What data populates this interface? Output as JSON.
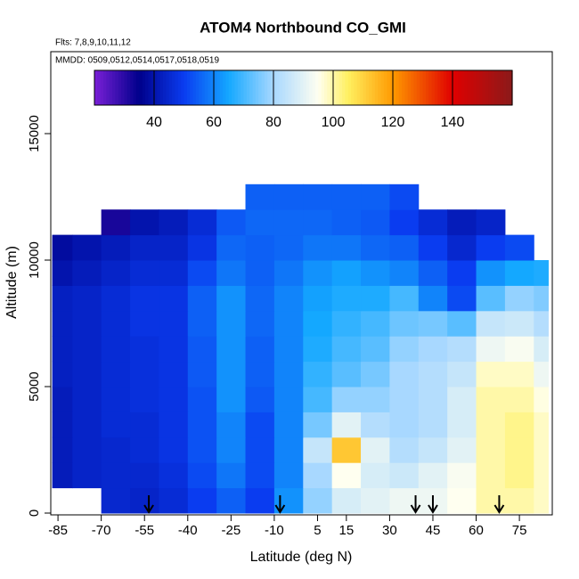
{
  "chart_data": {
    "type": "heatmap",
    "title": "ATOM4 Northbound CO_GMI",
    "subtitle": "Flts: 7,8,9,10,11,12",
    "annotation": "MMDD: 0509,0512,0514,0517,0518,0519",
    "xlabel": "Latitude (deg N)",
    "ylabel": "Altitude (m)",
    "xlim": [
      -87.5,
      86.4
    ],
    "ylim": [
      0,
      18240
    ],
    "xticks": [
      -85,
      -70,
      -55,
      -40,
      -25,
      -10,
      5,
      15,
      30,
      45,
      60,
      75
    ],
    "yticks": [
      0,
      5000,
      10000,
      15000
    ],
    "x_edges": [
      -87,
      -80,
      -70,
      -60,
      -50,
      -40,
      -30,
      -20,
      -10,
      0,
      10,
      20,
      30,
      40,
      50,
      60,
      70,
      80,
      85
    ],
    "y_edges": [
      0,
      1000,
      2000,
      3000,
      4000,
      5000,
      6000,
      7000,
      8000,
      9000,
      10000,
      11000,
      12000,
      13000
    ],
    "z": [
      [
        null,
        null,
        45,
        44,
        46,
        50,
        55,
        50,
        62,
        78,
        88,
        90,
        92,
        92,
        95,
        100,
        100,
        98
      ],
      [
        42,
        44,
        45,
        45,
        47,
        52,
        58,
        52,
        60,
        80,
        95,
        88,
        86,
        90,
        94,
        100,
        102,
        98
      ],
      [
        42,
        44,
        45,
        46,
        48,
        53,
        60,
        52,
        60,
        85,
        112,
        90,
        82,
        85,
        90,
        100,
        102,
        98
      ],
      [
        42,
        44,
        46,
        46,
        48,
        53,
        60,
        52,
        60,
        75,
        90,
        82,
        80,
        82,
        88,
        100,
        102,
        98
      ],
      [
        42,
        44,
        46,
        47,
        48,
        53,
        62,
        54,
        60,
        70,
        78,
        78,
        80,
        82,
        88,
        100,
        100,
        96
      ],
      [
        43,
        44,
        46,
        47,
        48,
        54,
        62,
        55,
        60,
        68,
        72,
        75,
        80,
        82,
        85,
        98,
        98,
        92
      ],
      [
        43,
        44,
        46,
        47,
        48,
        54,
        62,
        55,
        60,
        66,
        70,
        72,
        78,
        80,
        82,
        92,
        94,
        88
      ],
      [
        43,
        44,
        46,
        48,
        48,
        55,
        62,
        56,
        60,
        65,
        68,
        70,
        74,
        75,
        72,
        85,
        86,
        82
      ],
      [
        43,
        44,
        46,
        48,
        48,
        55,
        62,
        56,
        60,
        64,
        66,
        66,
        70,
        60,
        52,
        72,
        78,
        76
      ],
      [
        40,
        42,
        44,
        46,
        46,
        52,
        58,
        55,
        58,
        62,
        64,
        62,
        60,
        55,
        50,
        62,
        65,
        66
      ],
      [
        38,
        40,
        42,
        44,
        44,
        48,
        56,
        55,
        56,
        58,
        58,
        56,
        55,
        50,
        45,
        50,
        52,
        null
      ],
      [
        null,
        null,
        32,
        40,
        42,
        46,
        54,
        56,
        56,
        56,
        55,
        54,
        50,
        46,
        42,
        44,
        null,
        null
      ],
      [
        null,
        null,
        null,
        null,
        null,
        null,
        null,
        55,
        55,
        55,
        55,
        55,
        52,
        null,
        null,
        null,
        null,
        null
      ]
    ],
    "clim": [
      20,
      160
    ],
    "cticks": [
      40,
      60,
      80,
      100,
      120,
      140
    ],
    "colorscale": [
      [
        20,
        "#7a1fd6"
      ],
      [
        35,
        "#00008b"
      ],
      [
        50,
        "#0a3cf0"
      ],
      [
        65,
        "#14a8ff"
      ],
      [
        80,
        "#a8d8ff"
      ],
      [
        95,
        "#fffff0"
      ],
      [
        105,
        "#fff060"
      ],
      [
        120,
        "#ff9900"
      ],
      [
        140,
        "#e00000"
      ],
      [
        160,
        "#8b1a1a"
      ]
    ],
    "arrows": [
      -53.5,
      -8,
      39,
      45,
      68
    ]
  }
}
